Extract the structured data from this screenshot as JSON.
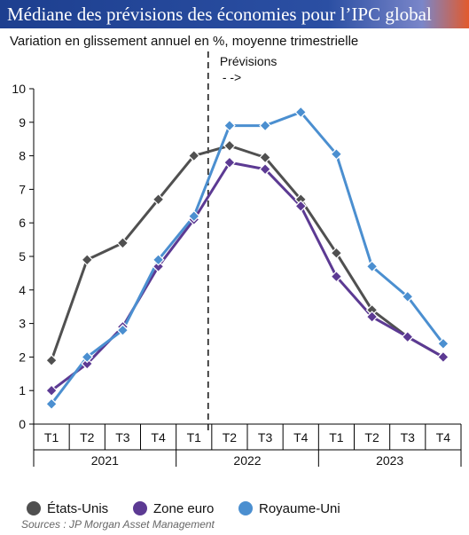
{
  "chart_data": {
    "type": "line",
    "title": "Médiane des prévisions des économies pour l’IPC global",
    "subtitle": "Variation en glissement annuel en %, moyenne trimestrielle",
    "x": [
      "T1",
      "T2",
      "T3",
      "T4",
      "T1",
      "T2",
      "T3",
      "T4",
      "T1",
      "T2",
      "T3",
      "T4"
    ],
    "groups": [
      {
        "label": "2021",
        "start": 0,
        "end": 4
      },
      {
        "label": "2022",
        "start": 4,
        "end": 8
      },
      {
        "label": "2023",
        "start": 8,
        "end": 12
      }
    ],
    "ylim": [
      0,
      10
    ],
    "yticks": [
      0,
      1,
      2,
      3,
      4,
      5,
      6,
      7,
      8,
      9,
      10
    ],
    "forecast_label": "Prévisions",
    "forecast_arrow": "- ->",
    "series": [
      {
        "name": "États-Unis",
        "color": "#505050",
        "values": [
          1.9,
          4.9,
          5.4,
          6.7,
          8.0,
          8.3,
          7.95,
          6.7,
          5.1,
          3.4,
          2.6,
          2.0
        ]
      },
      {
        "name": "Zone euro",
        "color": "#5c3a93",
        "values": [
          1.0,
          1.8,
          2.9,
          4.7,
          6.1,
          7.8,
          7.6,
          6.5,
          4.4,
          3.2,
          2.6,
          2.0
        ]
      },
      {
        "name": "Royaume-Uni",
        "color": "#4b8fd0",
        "values": [
          0.6,
          2.0,
          2.8,
          4.9,
          6.2,
          8.9,
          8.9,
          9.3,
          8.05,
          4.7,
          3.8,
          2.4
        ]
      }
    ],
    "legend": "bottom",
    "grid": false
  },
  "source": "Sources : JP Morgan Asset Management"
}
